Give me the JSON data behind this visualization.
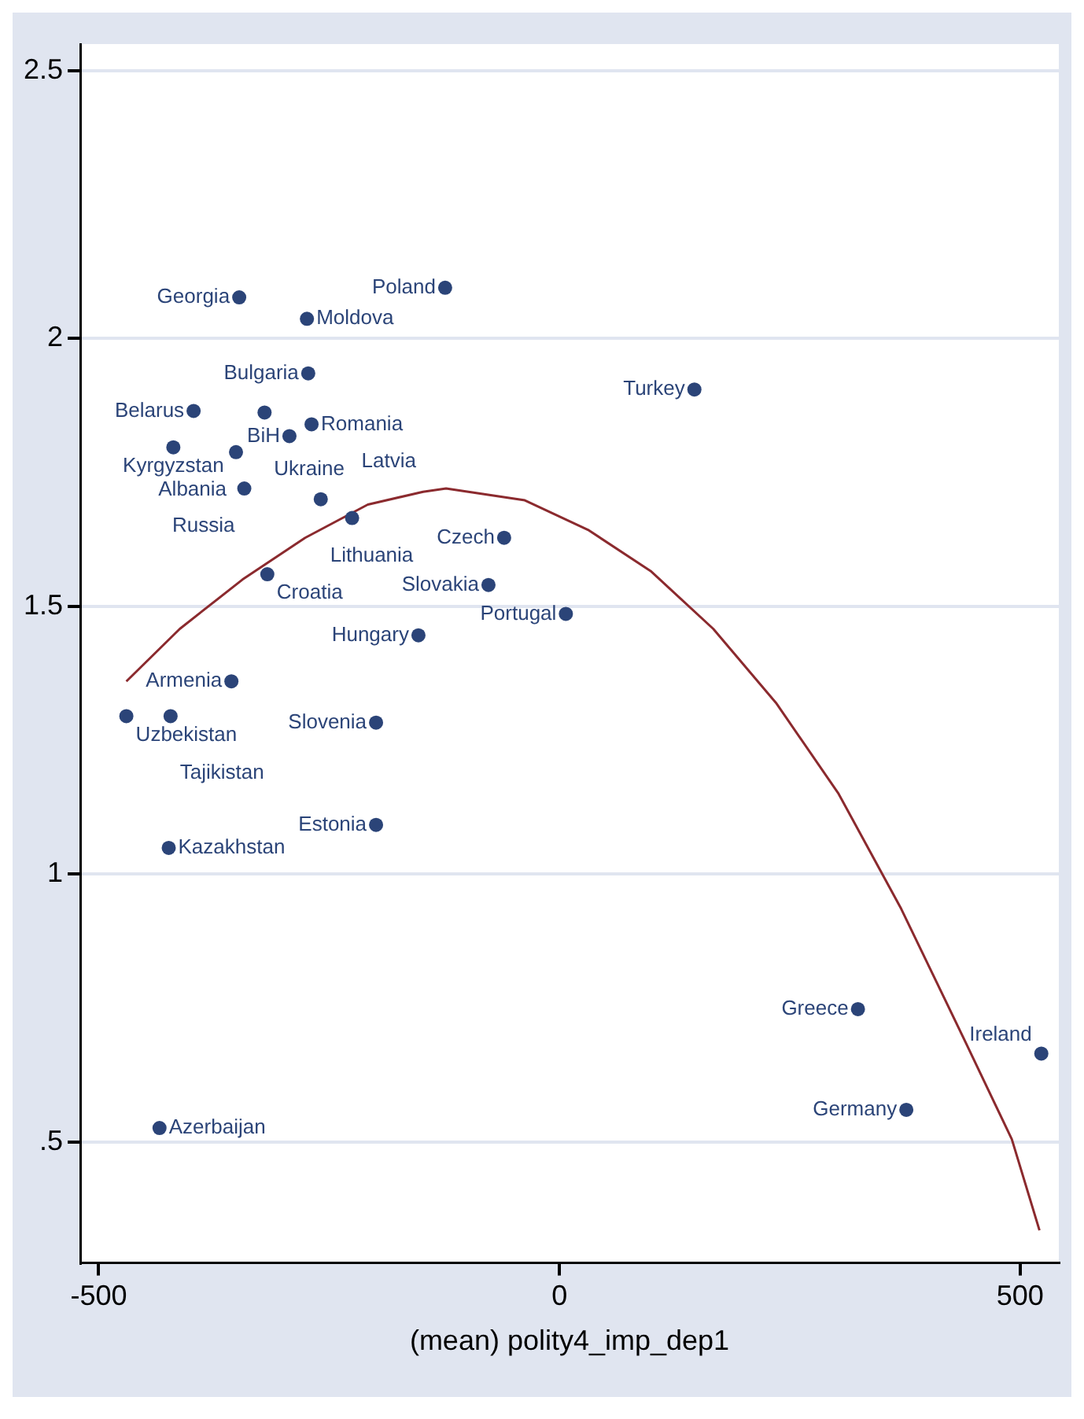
{
  "chart_data": {
    "type": "scatter",
    "xlabel": "(mean) polity4_imp_dep1",
    "xlim": [
      -520,
      542
    ],
    "xticks": [
      -500,
      0,
      500
    ],
    "ylim": [
      0.274,
      2.55
    ],
    "yticks": [
      {
        "value": 0.5,
        "label": ".5"
      },
      1,
      1.5,
      2,
      2.5
    ],
    "grid": "y",
    "legend": false,
    "series": [
      {
        "type": "scatter",
        "marker": "circle",
        "color": "#2b4478",
        "x": [
          -347.5,
          -274,
          -124,
          -272.6,
          -397,
          -320,
          -269,
          -293,
          -419,
          -351,
          -342,
          -259,
          -225,
          -60,
          -317,
          -77,
          7,
          -153,
          146.5,
          -356,
          -470,
          -422,
          -199,
          -199,
          -424,
          -434,
          324,
          523,
          376.5
        ],
        "values": [
          2.077,
          2.037,
          2.095,
          1.935,
          1.865,
          1.862,
          1.84,
          1.818,
          1.797,
          1.788,
          1.72,
          1.7,
          1.665,
          1.628,
          1.56,
          1.54,
          1.486,
          1.446,
          1.905,
          1.36,
          1.295,
          1.295,
          1.283,
          1.092,
          1.049,
          0.526,
          0.748,
          0.665,
          0.56
        ]
      },
      {
        "type": "line",
        "marker": "none",
        "line_style": "solid",
        "color": "#8b2a2e",
        "x": [
          -470,
          -412,
          -344,
          -276,
          -208,
          -148,
          -123,
          -37.5,
          31,
          99,
          167,
          235,
          303,
          371,
          440,
          491,
          521
        ],
        "values": [
          1.36,
          1.458,
          1.55,
          1.628,
          1.69,
          1.714,
          1.72,
          1.698,
          1.643,
          1.566,
          1.458,
          1.32,
          1.15,
          0.935,
          0.689,
          0.505,
          0.335
        ]
      }
    ],
    "annotations": [
      {
        "text": "Georgia",
        "x": -347.5,
        "y": 2.077
      },
      {
        "text": "Moldova",
        "x": -274,
        "y": 2.037
      },
      {
        "text": "Poland",
        "x": -124,
        "y": 2.095
      },
      {
        "text": "Bulgaria",
        "x": -272.6,
        "y": 1.935
      },
      {
        "text": "Belarus",
        "x": -397,
        "y": 1.865
      },
      {
        "text": "Ukraine",
        "x": -320,
        "y": 1.862
      },
      {
        "text": "Romania",
        "x": -269,
        "y": 1.84
      },
      {
        "text": "BiH",
        "x": -293,
        "y": 1.818
      },
      {
        "text": "Kyrgyzstan",
        "x": -419,
        "y": 1.797
      },
      {
        "text": "Albania",
        "x": -351,
        "y": 1.788
      },
      {
        "text": "Russia",
        "x": -342,
        "y": 1.72
      },
      {
        "text": "Lithuania",
        "x": -259,
        "y": 1.7
      },
      {
        "text": "Latvia",
        "x": -225,
        "y": 1.665
      },
      {
        "text": "Czech",
        "x": -60,
        "y": 1.628
      },
      {
        "text": "Croatia",
        "x": -317,
        "y": 1.56
      },
      {
        "text": "Slovakia",
        "x": -77,
        "y": 1.54
      },
      {
        "text": "Portugal",
        "x": 7,
        "y": 1.486
      },
      {
        "text": "Hungary",
        "x": -153,
        "y": 1.446
      },
      {
        "text": "Turkey",
        "x": 146.5,
        "y": 1.905
      },
      {
        "text": "Armenia",
        "x": -356,
        "y": 1.36
      },
      {
        "text": "Uzbekistan",
        "x": -470,
        "y": 1.295
      },
      {
        "text": "Tajikistan",
        "x": -422,
        "y": 1.295
      },
      {
        "text": "Slovenia",
        "x": -199,
        "y": 1.283
      },
      {
        "text": "Estonia",
        "x": -199,
        "y": 1.092
      },
      {
        "text": "Kazakhstan",
        "x": -424,
        "y": 1.049
      },
      {
        "text": "Azerbaijan",
        "x": -434,
        "y": 0.526
      },
      {
        "text": "Greece",
        "x": 324,
        "y": 0.748
      },
      {
        "text": "Ireland",
        "x": 523,
        "y": 0.665
      },
      {
        "text": "Germany",
        "x": 376.5,
        "y": 0.56
      }
    ]
  }
}
